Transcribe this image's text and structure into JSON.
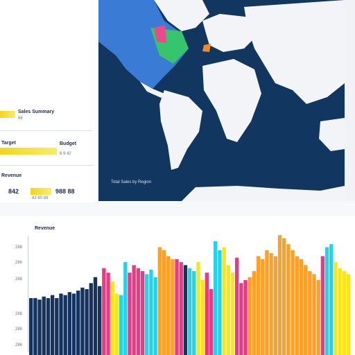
{
  "sidebar": {
    "row1_label": "Sales Summary",
    "row1_sub": "68",
    "row2_label": "Target",
    "row2_value": "Budget",
    "row2_sub": "6 9 42",
    "row3_title": "Revenue",
    "row3_value_left": "842",
    "row3_value_right": "988 88",
    "row3_sub": "43 80 88"
  },
  "map": {
    "caption": "Total Sales by Region",
    "colors": {
      "ocean": "#11365f",
      "land": "#f2f4f7",
      "highlight_green": "#36c46c",
      "highlight_blue": "#3a7bd5",
      "highlight_pink": "#e94b8a",
      "highlight_orange": "#f2892b"
    }
  },
  "chart": {
    "title": "Revenue",
    "y_ticks": [
      "",
      "288",
      "286",
      "288",
      "288",
      "288",
      "286"
    ]
  },
  "chart_data": {
    "type": "bar",
    "title": "Revenue",
    "xlabel": "",
    "ylabel": "",
    "series_colors": [
      "#15335e",
      "#e93a86",
      "#f9e51c",
      "#22d3ec",
      "#f9a12a",
      "#ee4eaa"
    ],
    "values": [
      38,
      38,
      37,
      39,
      38,
      40,
      38,
      41,
      40,
      42,
      41,
      43,
      45,
      44,
      48,
      52,
      46,
      58,
      55,
      49,
      41,
      40,
      62,
      55,
      60,
      58,
      56,
      54,
      57,
      52,
      72,
      70,
      66,
      64,
      64,
      62,
      60,
      58,
      56,
      62,
      50,
      55,
      44,
      76,
      70,
      72,
      60,
      55,
      65,
      48,
      50,
      52,
      56,
      66,
      64,
      70,
      68,
      66,
      80,
      78,
      74,
      70,
      66,
      64,
      60,
      56,
      54,
      50,
      66,
      72,
      74,
      62,
      58,
      56,
      54
    ],
    "colors_index": [
      0,
      0,
      0,
      0,
      0,
      0,
      0,
      0,
      0,
      0,
      0,
      0,
      0,
      0,
      0,
      0,
      0,
      1,
      1,
      2,
      2,
      3,
      3,
      1,
      1,
      1,
      1,
      3,
      3,
      3,
      4,
      4,
      4,
      4,
      1,
      1,
      0,
      3,
      3,
      2,
      2,
      1,
      1,
      3,
      3,
      2,
      2,
      2,
      1,
      1,
      1,
      4,
      4,
      4,
      4,
      4,
      4,
      4,
      4,
      4,
      4,
      4,
      4,
      4,
      4,
      4,
      4,
      4,
      1,
      3,
      3,
      2,
      2,
      2,
      2
    ],
    "ylim": [
      0,
      100
    ]
  }
}
